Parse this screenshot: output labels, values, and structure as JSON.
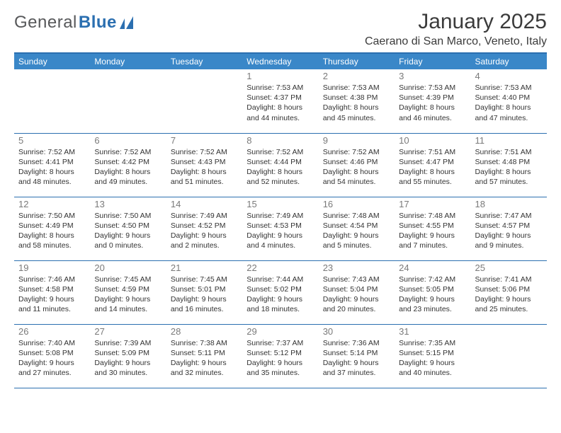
{
  "brand": {
    "part1": "General",
    "part2": "Blue"
  },
  "title": "January 2025",
  "location": "Caerano di San Marco, Veneto, Italy",
  "colors": {
    "header_bg": "#3a87c8",
    "header_text": "#ffffff",
    "rule": "#2b6fb0",
    "daynum": "#7a7a7a",
    "body_text": "#333333",
    "title_text": "#3b3b3b",
    "logo_gray": "#57585a",
    "logo_blue": "#2b6fb0"
  },
  "weekdays": [
    "Sunday",
    "Monday",
    "Tuesday",
    "Wednesday",
    "Thursday",
    "Friday",
    "Saturday"
  ],
  "weeks": [
    [
      null,
      null,
      null,
      {
        "d": "1",
        "sr": "7:53 AM",
        "ss": "4:37 PM",
        "dl": "8 hours and 44 minutes."
      },
      {
        "d": "2",
        "sr": "7:53 AM",
        "ss": "4:38 PM",
        "dl": "8 hours and 45 minutes."
      },
      {
        "d": "3",
        "sr": "7:53 AM",
        "ss": "4:39 PM",
        "dl": "8 hours and 46 minutes."
      },
      {
        "d": "4",
        "sr": "7:53 AM",
        "ss": "4:40 PM",
        "dl": "8 hours and 47 minutes."
      }
    ],
    [
      {
        "d": "5",
        "sr": "7:52 AM",
        "ss": "4:41 PM",
        "dl": "8 hours and 48 minutes."
      },
      {
        "d": "6",
        "sr": "7:52 AM",
        "ss": "4:42 PM",
        "dl": "8 hours and 49 minutes."
      },
      {
        "d": "7",
        "sr": "7:52 AM",
        "ss": "4:43 PM",
        "dl": "8 hours and 51 minutes."
      },
      {
        "d": "8",
        "sr": "7:52 AM",
        "ss": "4:44 PM",
        "dl": "8 hours and 52 minutes."
      },
      {
        "d": "9",
        "sr": "7:52 AM",
        "ss": "4:46 PM",
        "dl": "8 hours and 54 minutes."
      },
      {
        "d": "10",
        "sr": "7:51 AM",
        "ss": "4:47 PM",
        "dl": "8 hours and 55 minutes."
      },
      {
        "d": "11",
        "sr": "7:51 AM",
        "ss": "4:48 PM",
        "dl": "8 hours and 57 minutes."
      }
    ],
    [
      {
        "d": "12",
        "sr": "7:50 AM",
        "ss": "4:49 PM",
        "dl": "8 hours and 58 minutes."
      },
      {
        "d": "13",
        "sr": "7:50 AM",
        "ss": "4:50 PM",
        "dl": "9 hours and 0 minutes."
      },
      {
        "d": "14",
        "sr": "7:49 AM",
        "ss": "4:52 PM",
        "dl": "9 hours and 2 minutes."
      },
      {
        "d": "15",
        "sr": "7:49 AM",
        "ss": "4:53 PM",
        "dl": "9 hours and 4 minutes."
      },
      {
        "d": "16",
        "sr": "7:48 AM",
        "ss": "4:54 PM",
        "dl": "9 hours and 5 minutes."
      },
      {
        "d": "17",
        "sr": "7:48 AM",
        "ss": "4:55 PM",
        "dl": "9 hours and 7 minutes."
      },
      {
        "d": "18",
        "sr": "7:47 AM",
        "ss": "4:57 PM",
        "dl": "9 hours and 9 minutes."
      }
    ],
    [
      {
        "d": "19",
        "sr": "7:46 AM",
        "ss": "4:58 PM",
        "dl": "9 hours and 11 minutes."
      },
      {
        "d": "20",
        "sr": "7:45 AM",
        "ss": "4:59 PM",
        "dl": "9 hours and 14 minutes."
      },
      {
        "d": "21",
        "sr": "7:45 AM",
        "ss": "5:01 PM",
        "dl": "9 hours and 16 minutes."
      },
      {
        "d": "22",
        "sr": "7:44 AM",
        "ss": "5:02 PM",
        "dl": "9 hours and 18 minutes."
      },
      {
        "d": "23",
        "sr": "7:43 AM",
        "ss": "5:04 PM",
        "dl": "9 hours and 20 minutes."
      },
      {
        "d": "24",
        "sr": "7:42 AM",
        "ss": "5:05 PM",
        "dl": "9 hours and 23 minutes."
      },
      {
        "d": "25",
        "sr": "7:41 AM",
        "ss": "5:06 PM",
        "dl": "9 hours and 25 minutes."
      }
    ],
    [
      {
        "d": "26",
        "sr": "7:40 AM",
        "ss": "5:08 PM",
        "dl": "9 hours and 27 minutes."
      },
      {
        "d": "27",
        "sr": "7:39 AM",
        "ss": "5:09 PM",
        "dl": "9 hours and 30 minutes."
      },
      {
        "d": "28",
        "sr": "7:38 AM",
        "ss": "5:11 PM",
        "dl": "9 hours and 32 minutes."
      },
      {
        "d": "29",
        "sr": "7:37 AM",
        "ss": "5:12 PM",
        "dl": "9 hours and 35 minutes."
      },
      {
        "d": "30",
        "sr": "7:36 AM",
        "ss": "5:14 PM",
        "dl": "9 hours and 37 minutes."
      },
      {
        "d": "31",
        "sr": "7:35 AM",
        "ss": "5:15 PM",
        "dl": "9 hours and 40 minutes."
      },
      null
    ]
  ],
  "labels": {
    "sunrise": "Sunrise: ",
    "sunset": "Sunset: ",
    "daylight": "Daylight: "
  }
}
